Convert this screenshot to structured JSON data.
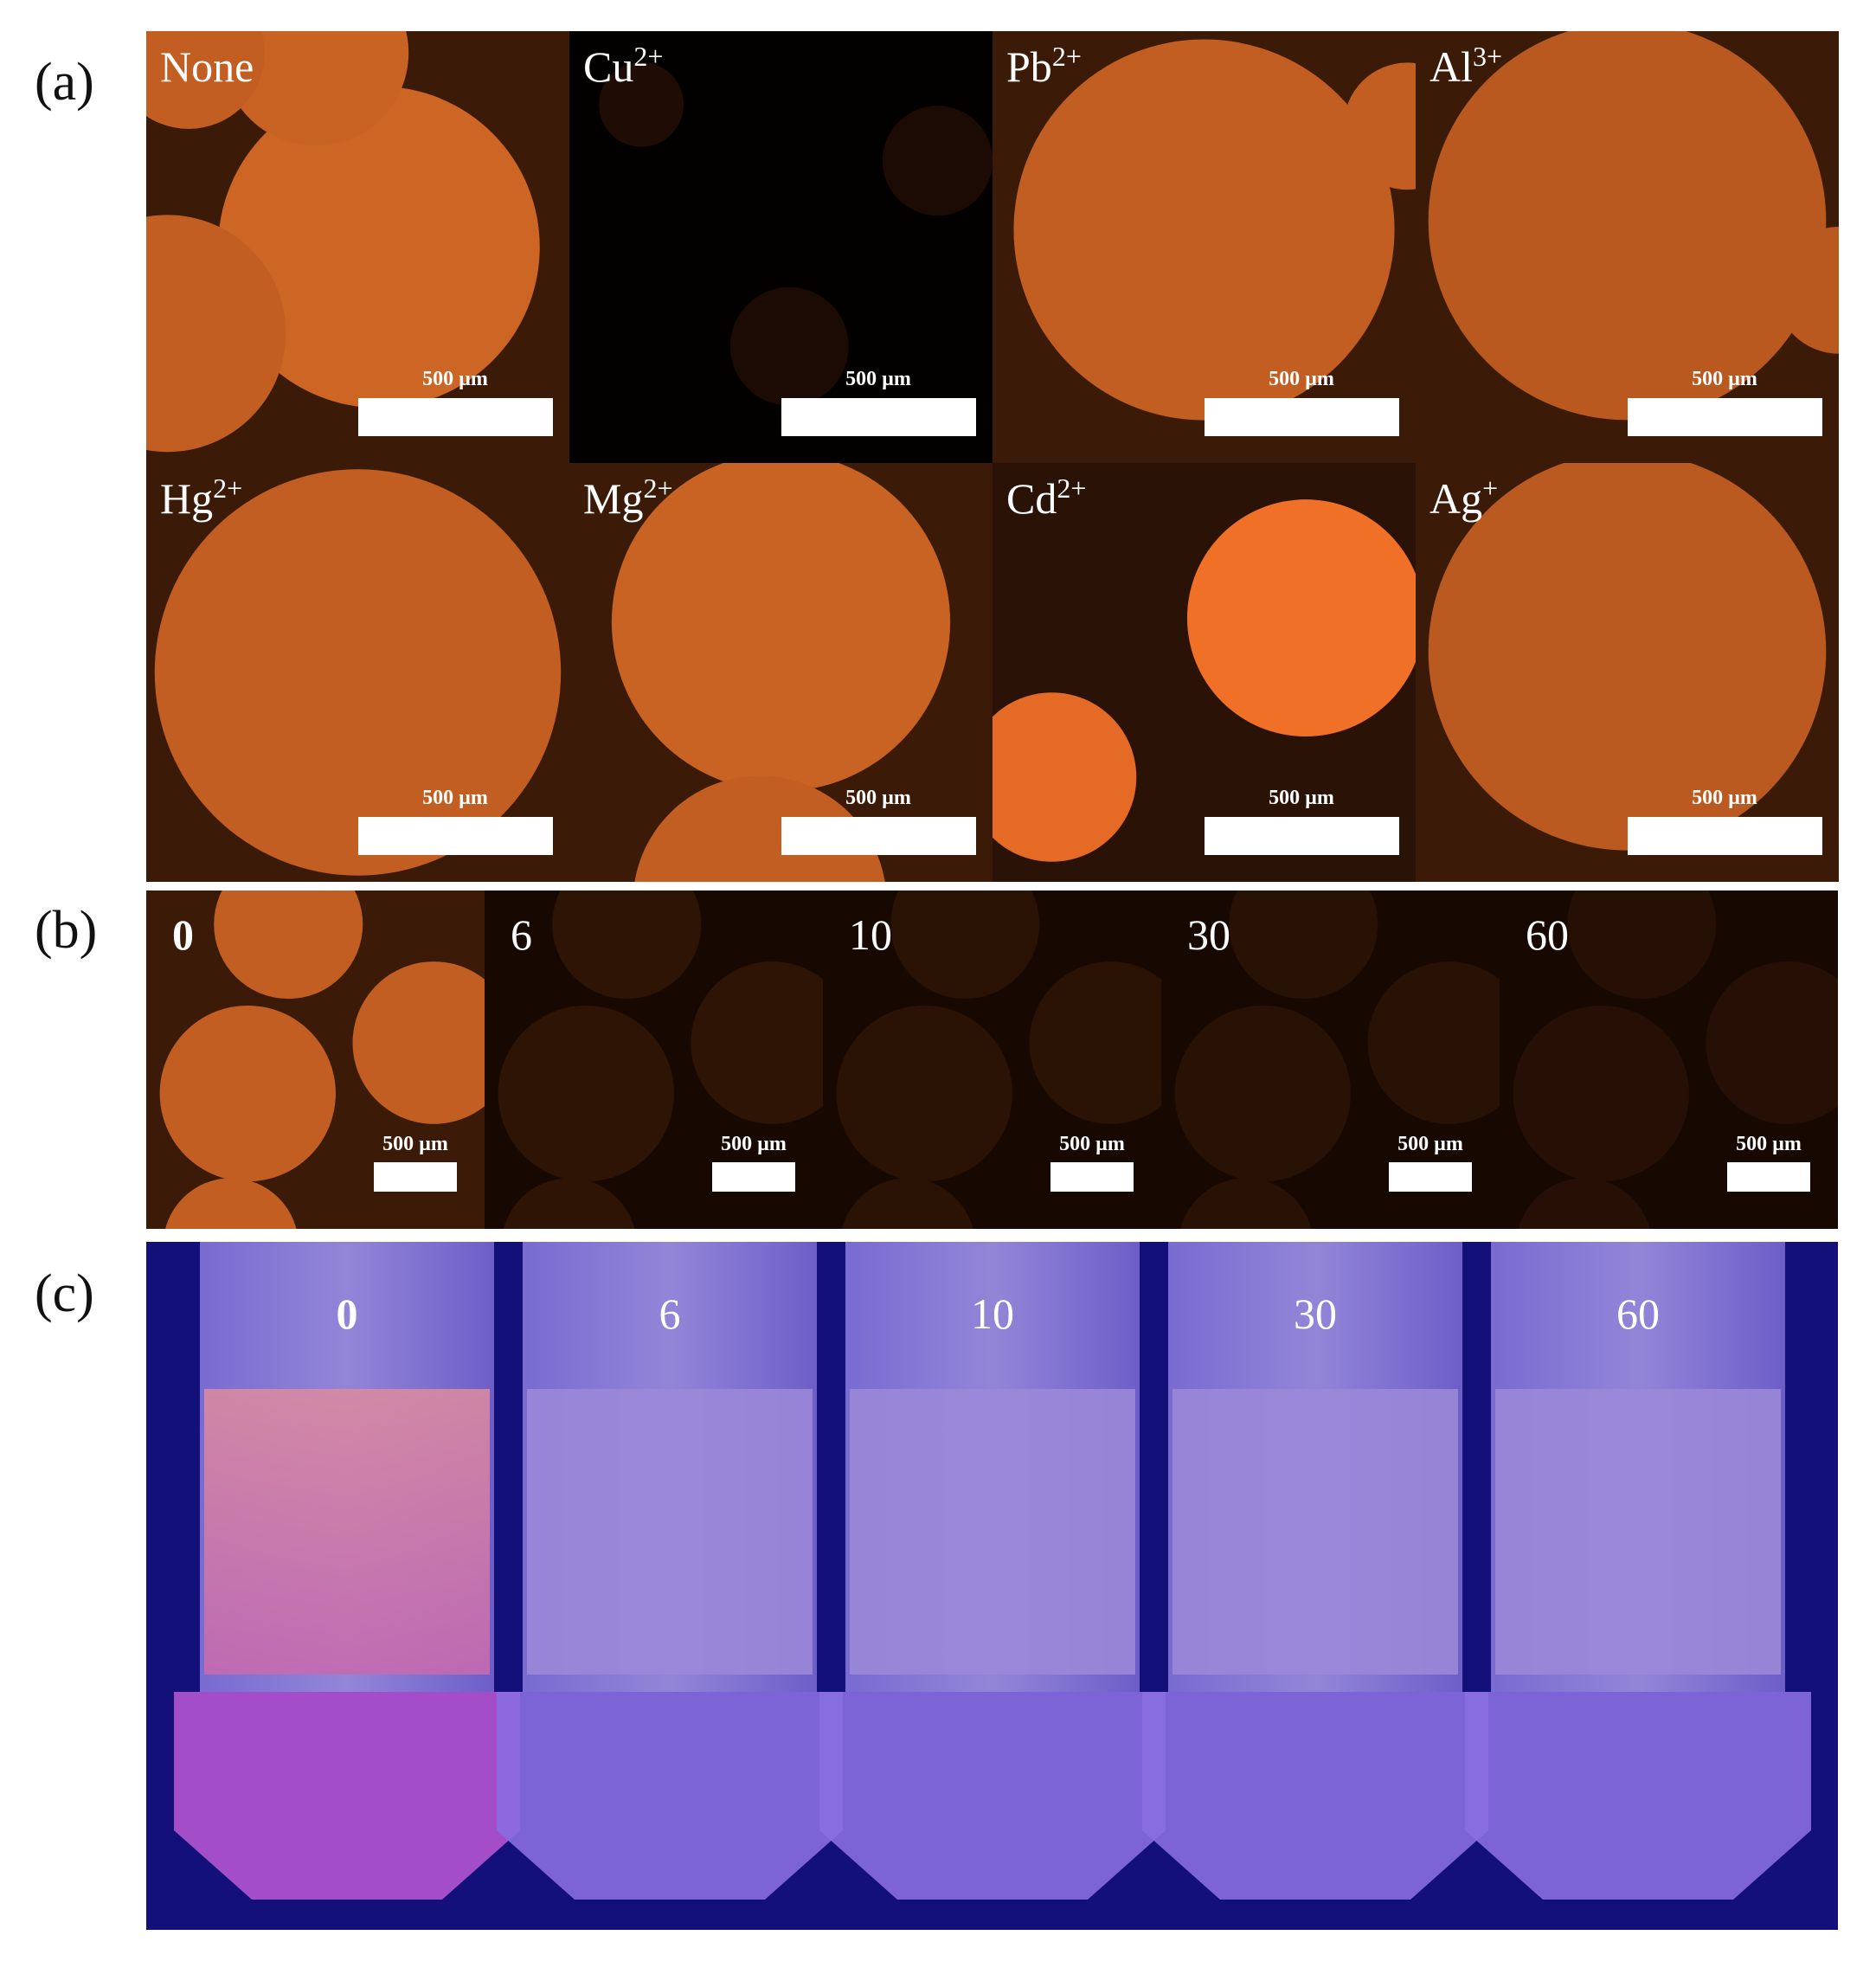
{
  "panel_a": {
    "label": "(a)",
    "images": [
      {
        "label": "None"
      },
      {
        "label": "Cu",
        "sup": "2+"
      },
      {
        "label": "Pb",
        "sup": "2+"
      },
      {
        "label": "Al",
        "sup": "3+"
      },
      {
        "label": "Hg",
        "sup": "2+"
      },
      {
        "label": "Mg",
        "sup": "2+"
      },
      {
        "label": "Cd",
        "sup": "2+"
      },
      {
        "label": "Ag",
        "sup": "+"
      }
    ],
    "scale_bar": "500 µm"
  },
  "panel_b": {
    "label": "(b)",
    "images": [
      "0",
      "6",
      "10",
      "30",
      "60"
    ],
    "scale_bar": "500 µm"
  },
  "panel_c": {
    "label": "(c)",
    "vials": [
      "0",
      "6",
      "10",
      "30",
      "60"
    ]
  }
}
